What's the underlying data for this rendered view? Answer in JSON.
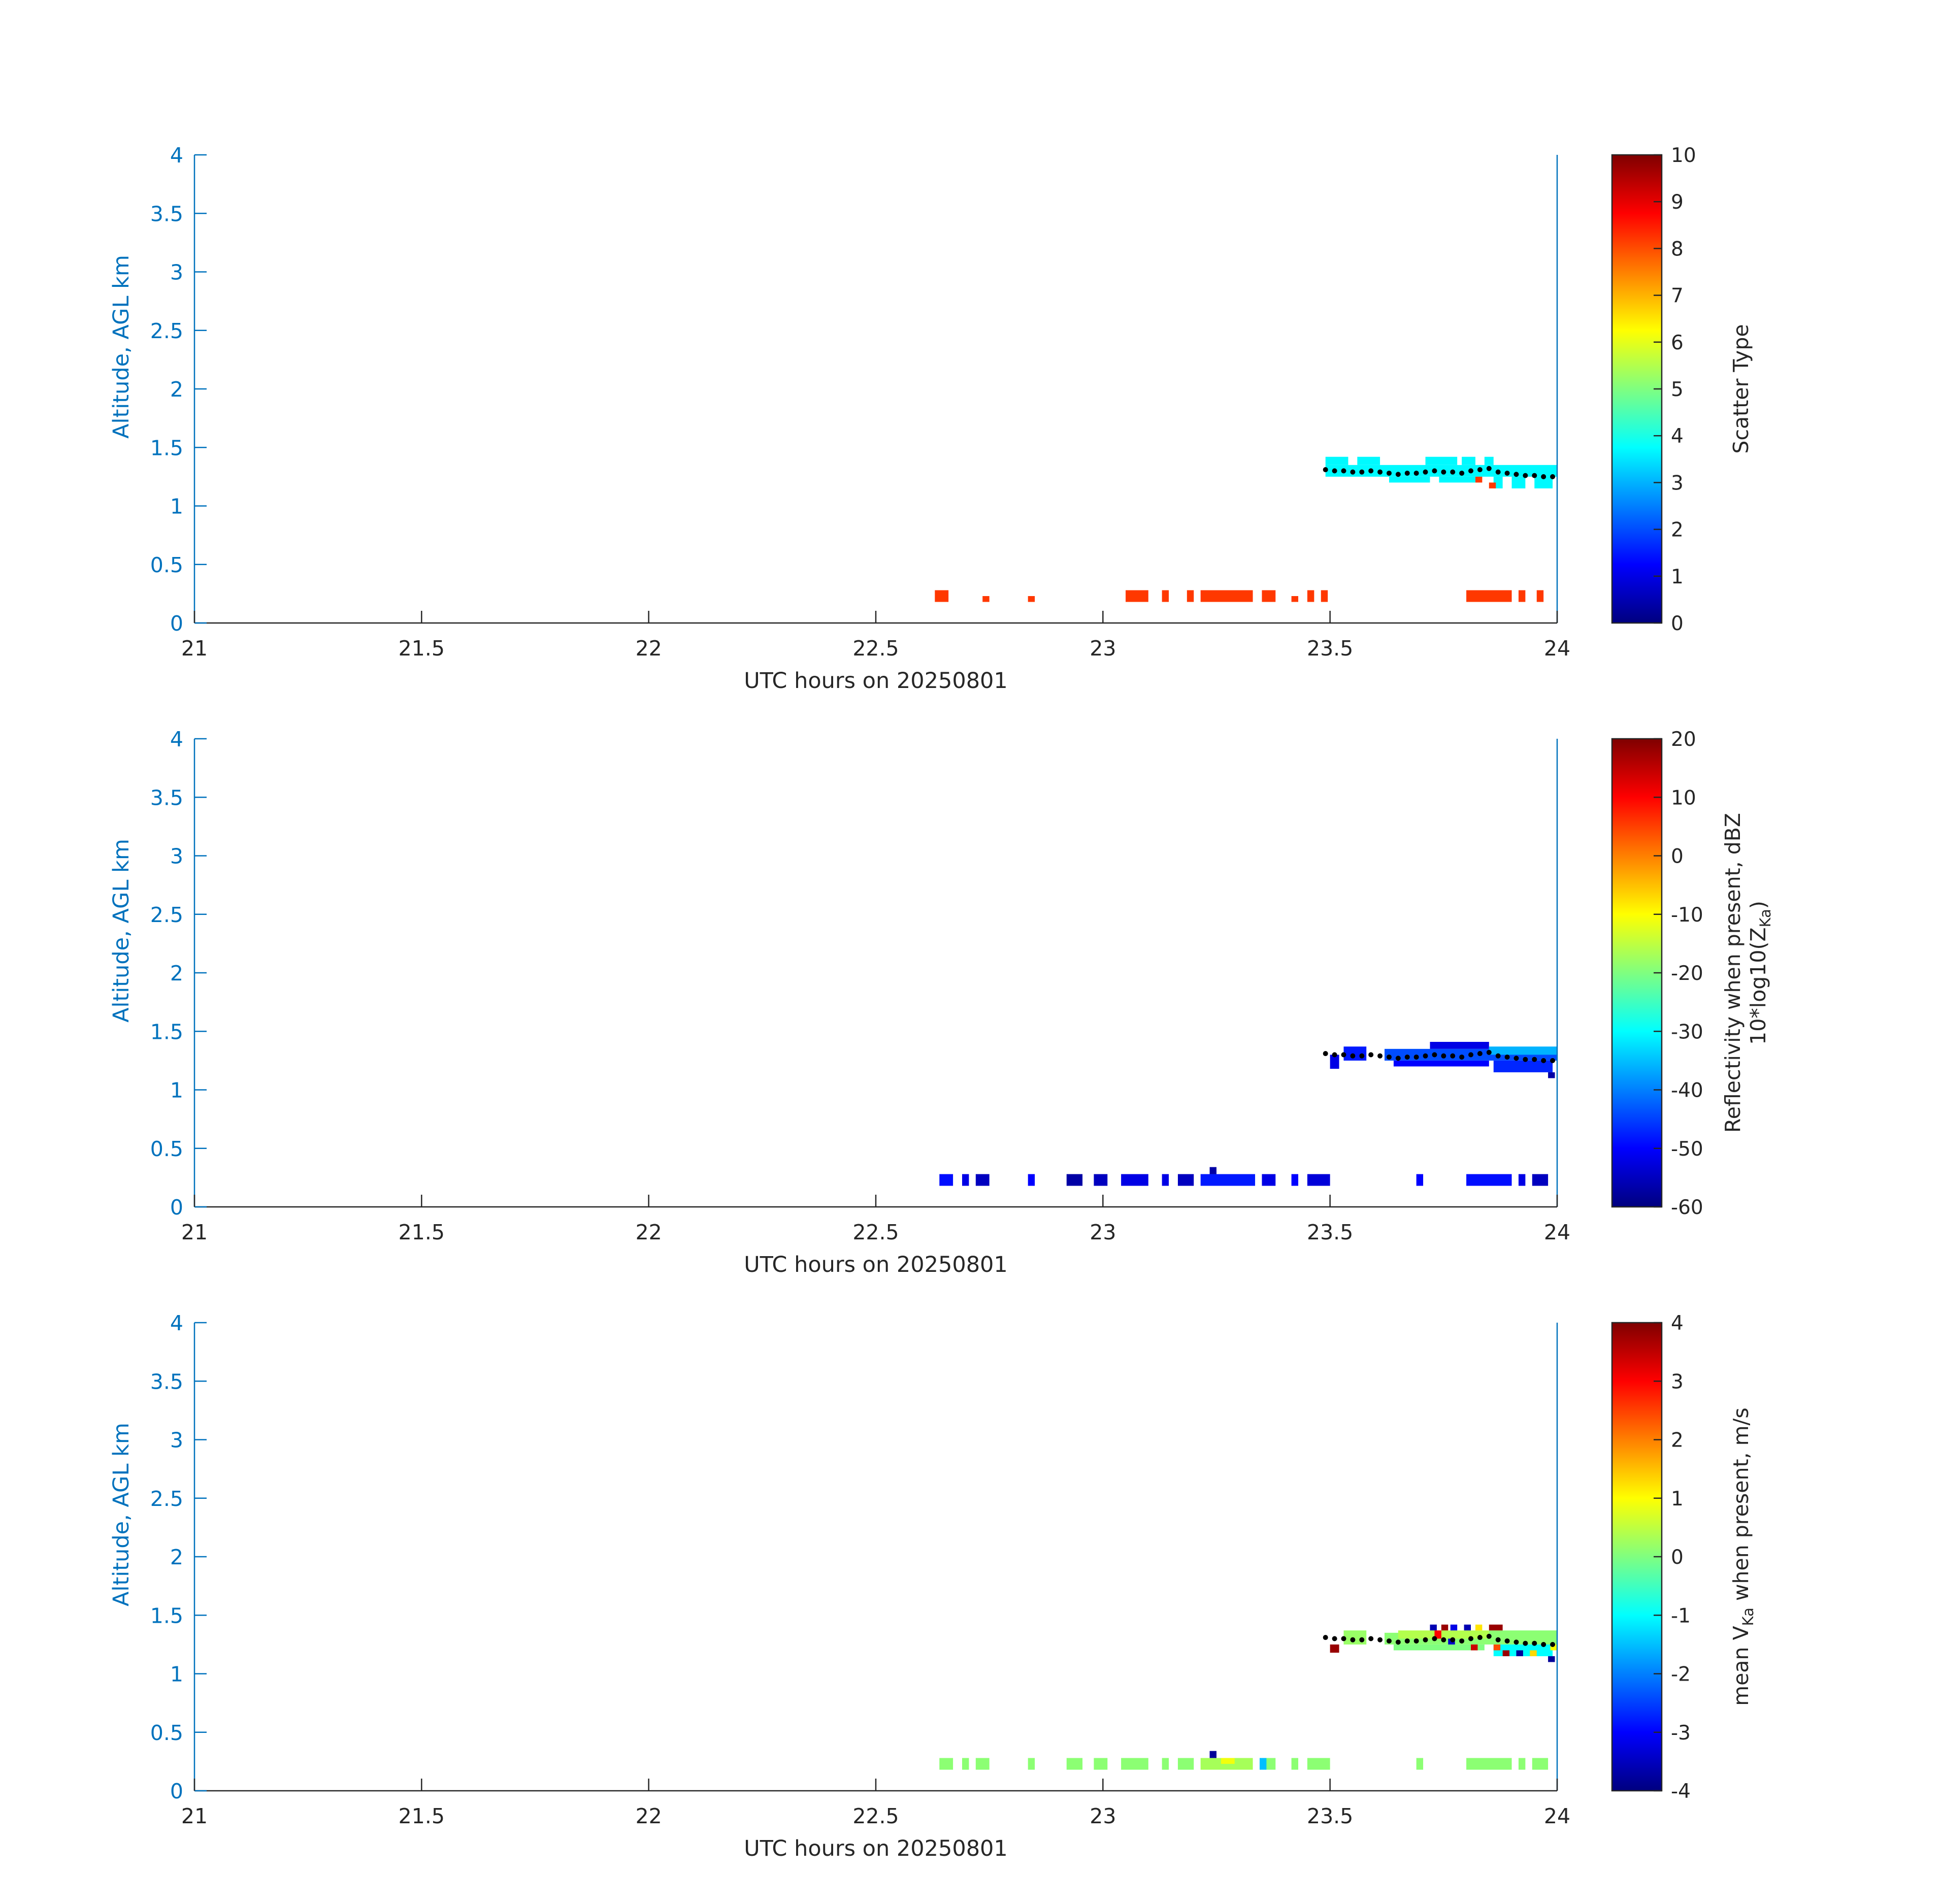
{
  "chart_data": [
    {
      "type": "heatmap",
      "xlabel": "UTC hours on 20250801",
      "ylabel": "Altitude, AGL km",
      "xlim": [
        21,
        24
      ],
      "ylim": [
        0,
        4
      ],
      "x_ticks": [
        "21",
        "21.5",
        "22",
        "22.5",
        "23",
        "23.5",
        "24"
      ],
      "y_ticks": [
        "0",
        "0.5",
        "1",
        "1.5",
        "2",
        "2.5",
        "3",
        "3.5",
        "4"
      ],
      "colorbar": {
        "label": "Scatter Type",
        "range": [
          0,
          10
        ],
        "ticks": [
          "0",
          "1",
          "2",
          "3",
          "4",
          "5",
          "6",
          "7",
          "8",
          "9",
          "10"
        ]
      },
      "cells": [
        {
          "x0": 22.63,
          "x1": 22.66,
          "y0": 0.18,
          "y1": 0.28,
          "value": 8.2
        },
        {
          "x0": 22.735,
          "x1": 22.75,
          "y0": 0.18,
          "y1": 0.23,
          "value": 8.2
        },
        {
          "x0": 22.835,
          "x1": 22.85,
          "y0": 0.18,
          "y1": 0.23,
          "value": 8.2
        },
        {
          "x0": 23.05,
          "x1": 23.1,
          "y0": 0.18,
          "y1": 0.28,
          "value": 8.2
        },
        {
          "x0": 23.13,
          "x1": 23.145,
          "y0": 0.18,
          "y1": 0.28,
          "value": 8.2
        },
        {
          "x0": 23.185,
          "x1": 23.2,
          "y0": 0.18,
          "y1": 0.28,
          "value": 8.2
        },
        {
          "x0": 23.215,
          "x1": 23.33,
          "y0": 0.18,
          "y1": 0.28,
          "value": 8.2
        },
        {
          "x0": 23.35,
          "x1": 23.38,
          "y0": 0.18,
          "y1": 0.28,
          "value": 8.2
        },
        {
          "x0": 23.415,
          "x1": 23.43,
          "y0": 0.18,
          "y1": 0.23,
          "value": 8.2
        },
        {
          "x0": 23.45,
          "x1": 23.465,
          "y0": 0.18,
          "y1": 0.28,
          "value": 8.2
        },
        {
          "x0": 23.48,
          "x1": 23.495,
          "y0": 0.18,
          "y1": 0.28,
          "value": 8.2
        },
        {
          "x0": 23.8,
          "x1": 23.9,
          "y0": 0.18,
          "y1": 0.28,
          "value": 8.2
        },
        {
          "x0": 23.915,
          "x1": 23.93,
          "y0": 0.18,
          "y1": 0.28,
          "value": 8.2
        },
        {
          "x0": 23.955,
          "x1": 23.97,
          "y0": 0.18,
          "y1": 0.28,
          "value": 8.2
        },
        {
          "x0": 23.49,
          "x1": 24.0,
          "y0": 1.25,
          "y1": 1.35,
          "value": 3.7
        },
        {
          "x0": 23.49,
          "x1": 23.54,
          "y0": 1.35,
          "y1": 1.42,
          "value": 3.7
        },
        {
          "x0": 23.56,
          "x1": 23.61,
          "y0": 1.35,
          "y1": 1.42,
          "value": 3.7
        },
        {
          "x0": 23.71,
          "x1": 23.78,
          "y0": 1.35,
          "y1": 1.42,
          "value": 3.7
        },
        {
          "x0": 23.79,
          "x1": 23.82,
          "y0": 1.35,
          "y1": 1.42,
          "value": 3.7
        },
        {
          "x0": 23.84,
          "x1": 23.86,
          "y0": 1.35,
          "y1": 1.42,
          "value": 3.7
        },
        {
          "x0": 23.63,
          "x1": 23.72,
          "y0": 1.2,
          "y1": 1.25,
          "value": 3.7
        },
        {
          "x0": 23.74,
          "x1": 23.82,
          "y0": 1.2,
          "y1": 1.25,
          "value": 3.7
        },
        {
          "x0": 23.86,
          "x1": 23.88,
          "y0": 1.15,
          "y1": 1.25,
          "value": 3.7
        },
        {
          "x0": 23.9,
          "x1": 23.93,
          "y0": 1.15,
          "y1": 1.25,
          "value": 3.7
        },
        {
          "x0": 23.95,
          "x1": 23.99,
          "y0": 1.15,
          "y1": 1.25,
          "value": 3.7
        },
        {
          "x0": 23.82,
          "x1": 23.835,
          "y0": 1.2,
          "y1": 1.25,
          "value": 8.2
        },
        {
          "x0": 23.85,
          "x1": 23.865,
          "y0": 1.15,
          "y1": 1.2,
          "value": 8.2
        }
      ]
    },
    {
      "type": "heatmap",
      "xlabel": "UTC hours on 20250801",
      "ylabel": "Altitude, AGL km",
      "xlim": [
        21,
        24
      ],
      "ylim": [
        0,
        4
      ],
      "x_ticks": [
        "21",
        "21.5",
        "22",
        "22.5",
        "23",
        "23.5",
        "24"
      ],
      "y_ticks": [
        "0",
        "0.5",
        "1",
        "1.5",
        "2",
        "2.5",
        "3",
        "3.5",
        "4"
      ],
      "colorbar": {
        "label": "Reflectivity when present, dBZ",
        "label2": "10*log10(Z",
        "label2_sub": "Ka",
        "label2_end": ")",
        "range": [
          -60,
          20
        ],
        "ticks": [
          "-60",
          "-50",
          "-40",
          "-30",
          "-20",
          "-10",
          "0",
          "10",
          "20"
        ]
      },
      "cells": [
        {
          "x0": 22.64,
          "x1": 22.67,
          "y0": 0.18,
          "y1": 0.28,
          "value": -49
        },
        {
          "x0": 22.69,
          "x1": 22.705,
          "y0": 0.18,
          "y1": 0.28,
          "value": -52
        },
        {
          "x0": 22.72,
          "x1": 22.75,
          "y0": 0.18,
          "y1": 0.28,
          "value": -55
        },
        {
          "x0": 22.835,
          "x1": 22.85,
          "y0": 0.18,
          "y1": 0.28,
          "value": -50
        },
        {
          "x0": 22.92,
          "x1": 22.955,
          "y0": 0.18,
          "y1": 0.28,
          "value": -57
        },
        {
          "x0": 22.98,
          "x1": 23.01,
          "y0": 0.18,
          "y1": 0.28,
          "value": -55
        },
        {
          "x0": 23.04,
          "x1": 23.1,
          "y0": 0.18,
          "y1": 0.28,
          "value": -52
        },
        {
          "x0": 23.13,
          "x1": 23.145,
          "y0": 0.18,
          "y1": 0.28,
          "value": -52
        },
        {
          "x0": 23.165,
          "x1": 23.2,
          "y0": 0.18,
          "y1": 0.28,
          "value": -55
        },
        {
          "x0": 23.215,
          "x1": 23.335,
          "y0": 0.18,
          "y1": 0.28,
          "value": -48
        },
        {
          "x0": 23.35,
          "x1": 23.38,
          "y0": 0.18,
          "y1": 0.28,
          "value": -52
        },
        {
          "x0": 23.415,
          "x1": 23.43,
          "y0": 0.18,
          "y1": 0.28,
          "value": -50
        },
        {
          "x0": 23.45,
          "x1": 23.5,
          "y0": 0.18,
          "y1": 0.28,
          "value": -53
        },
        {
          "x0": 23.235,
          "x1": 23.25,
          "y0": 0.28,
          "y1": 0.34,
          "value": -57
        },
        {
          "x0": 23.69,
          "x1": 23.705,
          "y0": 0.18,
          "y1": 0.28,
          "value": -50
        },
        {
          "x0": 23.8,
          "x1": 23.9,
          "y0": 0.18,
          "y1": 0.28,
          "value": -49
        },
        {
          "x0": 23.915,
          "x1": 23.93,
          "y0": 0.18,
          "y1": 0.28,
          "value": -52
        },
        {
          "x0": 23.945,
          "x1": 23.98,
          "y0": 0.18,
          "y1": 0.28,
          "value": -55
        },
        {
          "x0": 23.5,
          "x1": 23.52,
          "y0": 1.18,
          "y1": 1.3,
          "value": -52
        },
        {
          "x0": 23.53,
          "x1": 23.58,
          "y0": 1.25,
          "y1": 1.37,
          "value": -48
        },
        {
          "x0": 23.62,
          "x1": 24.0,
          "y0": 1.25,
          "y1": 1.35,
          "value": -44
        },
        {
          "x0": 23.72,
          "x1": 23.85,
          "y0": 1.35,
          "y1": 1.41,
          "value": -52
        },
        {
          "x0": 23.64,
          "x1": 23.85,
          "y0": 1.2,
          "y1": 1.25,
          "value": -50
        },
        {
          "x0": 23.86,
          "x1": 23.99,
          "y0": 1.15,
          "y1": 1.25,
          "value": -47
        },
        {
          "x0": 23.98,
          "x1": 23.995,
          "y0": 1.1,
          "y1": 1.15,
          "value": -57
        },
        {
          "x0": 23.85,
          "x1": 24.0,
          "y0": 1.3,
          "y1": 1.37,
          "value": -36
        }
      ]
    },
    {
      "type": "heatmap",
      "xlabel": "UTC hours on 20250801",
      "ylabel": "Altitude, AGL km",
      "xlim": [
        21,
        24
      ],
      "ylim": [
        0,
        4
      ],
      "x_ticks": [
        "21",
        "21.5",
        "22",
        "22.5",
        "23",
        "23.5",
        "24"
      ],
      "y_ticks": [
        "0",
        "0.5",
        "1",
        "1.5",
        "2",
        "2.5",
        "3",
        "3.5",
        "4"
      ],
      "colorbar": {
        "label": "mean V",
        "label_sub": "Ka",
        "label_end": " when present, m/s",
        "range": [
          -4,
          4
        ],
        "ticks": [
          "-4",
          "-3",
          "-2",
          "-1",
          "0",
          "1",
          "2",
          "3",
          "4"
        ]
      },
      "cells": [
        {
          "x0": 22.64,
          "x1": 22.67,
          "y0": 0.18,
          "y1": 0.28,
          "value": 0.1
        },
        {
          "x0": 22.69,
          "x1": 22.705,
          "y0": 0.18,
          "y1": 0.28,
          "value": 0.1
        },
        {
          "x0": 22.72,
          "x1": 22.75,
          "y0": 0.18,
          "y1": 0.28,
          "value": 0.1
        },
        {
          "x0": 22.835,
          "x1": 22.85,
          "y0": 0.18,
          "y1": 0.28,
          "value": 0.1
        },
        {
          "x0": 22.92,
          "x1": 22.955,
          "y0": 0.18,
          "y1": 0.28,
          "value": 0.1
        },
        {
          "x0": 22.98,
          "x1": 23.01,
          "y0": 0.18,
          "y1": 0.28,
          "value": 0.1
        },
        {
          "x0": 23.04,
          "x1": 23.1,
          "y0": 0.18,
          "y1": 0.28,
          "value": 0.1
        },
        {
          "x0": 23.13,
          "x1": 23.145,
          "y0": 0.18,
          "y1": 0.28,
          "value": 0.1
        },
        {
          "x0": 23.165,
          "x1": 23.2,
          "y0": 0.18,
          "y1": 0.28,
          "value": 0.1
        },
        {
          "x0": 23.215,
          "x1": 23.33,
          "y0": 0.18,
          "y1": 0.28,
          "value": 0.3
        },
        {
          "x0": 23.26,
          "x1": 23.29,
          "y0": 0.23,
          "y1": 0.28,
          "value": 0.9
        },
        {
          "x0": 23.35,
          "x1": 23.38,
          "y0": 0.18,
          "y1": 0.28,
          "value": 0.1
        },
        {
          "x0": 23.345,
          "x1": 23.36,
          "y0": 0.18,
          "y1": 0.28,
          "value": -1.5
        },
        {
          "x0": 23.415,
          "x1": 23.43,
          "y0": 0.18,
          "y1": 0.28,
          "value": 0.1
        },
        {
          "x0": 23.45,
          "x1": 23.5,
          "y0": 0.18,
          "y1": 0.28,
          "value": 0.1
        },
        {
          "x0": 23.235,
          "x1": 23.25,
          "y0": 0.28,
          "y1": 0.34,
          "value": -3.8
        },
        {
          "x0": 23.69,
          "x1": 23.705,
          "y0": 0.18,
          "y1": 0.28,
          "value": 0.1
        },
        {
          "x0": 23.8,
          "x1": 23.9,
          "y0": 0.18,
          "y1": 0.28,
          "value": 0.1
        },
        {
          "x0": 23.915,
          "x1": 23.93,
          "y0": 0.18,
          "y1": 0.28,
          "value": 0.1
        },
        {
          "x0": 23.945,
          "x1": 23.98,
          "y0": 0.18,
          "y1": 0.28,
          "value": 0.1
        },
        {
          "x0": 23.5,
          "x1": 23.52,
          "y0": 1.18,
          "y1": 1.25,
          "value": 3.8
        },
        {
          "x0": 23.53,
          "x1": 23.58,
          "y0": 1.25,
          "y1": 1.37,
          "value": 0.2
        },
        {
          "x0": 23.62,
          "x1": 24.0,
          "y0": 1.25,
          "y1": 1.35,
          "value": 0.1
        },
        {
          "x0": 23.65,
          "x1": 23.85,
          "y0": 1.3,
          "y1": 1.37,
          "value": 0.4
        },
        {
          "x0": 23.64,
          "x1": 23.84,
          "y0": 1.2,
          "y1": 1.25,
          "value": 0.0
        },
        {
          "x0": 23.85,
          "x1": 24.0,
          "y0": 1.3,
          "y1": 1.37,
          "value": 0.1
        },
        {
          "x0": 23.86,
          "x1": 23.99,
          "y0": 1.15,
          "y1": 1.25,
          "value": -1.0
        },
        {
          "x0": 23.72,
          "x1": 23.735,
          "y0": 1.37,
          "y1": 1.42,
          "value": -3.6
        },
        {
          "x0": 23.745,
          "x1": 23.76,
          "y0": 1.37,
          "y1": 1.42,
          "value": 3.8
        },
        {
          "x0": 23.765,
          "x1": 23.78,
          "y0": 1.37,
          "y1": 1.42,
          "value": -3.2
        },
        {
          "x0": 23.795,
          "x1": 23.81,
          "y0": 1.37,
          "y1": 1.42,
          "value": -3.6
        },
        {
          "x0": 23.82,
          "x1": 23.835,
          "y0": 1.37,
          "y1": 1.42,
          "value": 1.2
        },
        {
          "x0": 23.85,
          "x1": 23.88,
          "y0": 1.37,
          "y1": 1.42,
          "value": 3.8
        },
        {
          "x0": 23.73,
          "x1": 23.745,
          "y0": 1.3,
          "y1": 1.37,
          "value": 3.0
        },
        {
          "x0": 23.76,
          "x1": 23.775,
          "y0": 1.25,
          "y1": 1.3,
          "value": -3.4
        },
        {
          "x0": 23.81,
          "x1": 23.825,
          "y0": 1.2,
          "y1": 1.25,
          "value": 3.4
        },
        {
          "x0": 23.86,
          "x1": 23.875,
          "y0": 1.2,
          "y1": 1.25,
          "value": 2.4
        },
        {
          "x0": 23.88,
          "x1": 23.895,
          "y0": 1.15,
          "y1": 1.2,
          "value": 3.8
        },
        {
          "x0": 23.91,
          "x1": 23.925,
          "y0": 1.15,
          "y1": 1.2,
          "value": -3.8
        },
        {
          "x0": 23.94,
          "x1": 23.955,
          "y0": 1.15,
          "y1": 1.2,
          "value": 1.3
        },
        {
          "x0": 23.98,
          "x1": 23.995,
          "y0": 1.1,
          "y1": 1.15,
          "value": -3.8
        },
        {
          "x0": 23.985,
          "x1": 24.0,
          "y0": 1.2,
          "y1": 1.25,
          "value": 1.0
        }
      ]
    }
  ],
  "cloud_base_dots": {
    "x": [
      23.49,
      23.51,
      23.53,
      23.55,
      23.57,
      23.59,
      23.61,
      23.63,
      23.65,
      23.67,
      23.69,
      23.71,
      23.73,
      23.75,
      23.77,
      23.79,
      23.81,
      23.83,
      23.85,
      23.87,
      23.89,
      23.91,
      23.93,
      23.95,
      23.97,
      23.99
    ],
    "y": [
      1.31,
      1.3,
      1.3,
      1.29,
      1.29,
      1.3,
      1.29,
      1.28,
      1.27,
      1.28,
      1.28,
      1.29,
      1.3,
      1.29,
      1.29,
      1.28,
      1.3,
      1.31,
      1.32,
      1.29,
      1.28,
      1.27,
      1.26,
      1.26,
      1.25,
      1.25
    ]
  },
  "colors": {
    "axis": "#0072BD",
    "text": "#262626",
    "dots": "#000000"
  }
}
